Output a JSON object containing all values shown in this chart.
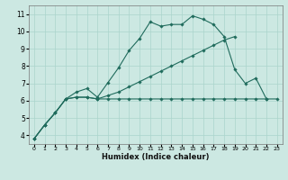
{
  "xlabel": "Humidex (Indice chaleur)",
  "bg_color": "#cce8e2",
  "grid_color": "#aad4cc",
  "line_color": "#1f6b5c",
  "xlim": [
    -0.5,
    23.5
  ],
  "ylim": [
    3.5,
    11.5
  ],
  "xticks": [
    0,
    1,
    2,
    3,
    4,
    5,
    6,
    7,
    8,
    9,
    10,
    11,
    12,
    13,
    14,
    15,
    16,
    17,
    18,
    19,
    20,
    21,
    22,
    23
  ],
  "yticks": [
    4,
    5,
    6,
    7,
    8,
    9,
    10,
    11
  ],
  "curve1_x": [
    0,
    1,
    2,
    3,
    4,
    5,
    6,
    7,
    8,
    9,
    10,
    11,
    12,
    13,
    14,
    15,
    16,
    17,
    18,
    19,
    20,
    21,
    22
  ],
  "curve1_y": [
    3.8,
    4.6,
    5.3,
    6.1,
    6.5,
    6.7,
    6.2,
    7.05,
    7.9,
    8.9,
    9.6,
    10.55,
    10.3,
    10.4,
    10.4,
    10.9,
    10.7,
    10.4,
    9.7,
    7.8,
    7.0,
    7.3,
    6.1
  ],
  "curve2_x": [
    0,
    1,
    2,
    3,
    4,
    5,
    6,
    7,
    8,
    9,
    10,
    11,
    12,
    13,
    14,
    15,
    16,
    17,
    18,
    19
  ],
  "curve2_y": [
    3.8,
    4.6,
    5.3,
    6.1,
    6.2,
    6.2,
    6.1,
    6.3,
    6.5,
    6.8,
    7.1,
    7.4,
    7.7,
    8.0,
    8.3,
    8.6,
    8.9,
    9.2,
    9.5,
    9.7
  ],
  "curve3_x": [
    0,
    1,
    2,
    3,
    4,
    5,
    6,
    7,
    8,
    9,
    10,
    11,
    12,
    13,
    14,
    15,
    16,
    17,
    18,
    19,
    20,
    21,
    22,
    23
  ],
  "curve3_y": [
    3.8,
    4.6,
    5.3,
    6.1,
    6.2,
    6.2,
    6.1,
    6.1,
    6.1,
    6.1,
    6.1,
    6.1,
    6.1,
    6.1,
    6.1,
    6.1,
    6.1,
    6.1,
    6.1,
    6.1,
    6.1,
    6.1,
    6.1,
    6.1
  ]
}
